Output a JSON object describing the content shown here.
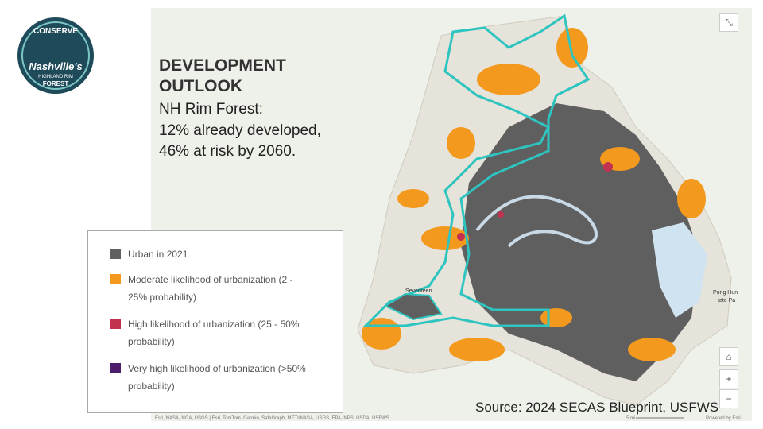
{
  "logo": {
    "top": "CONSERVE",
    "name": "Nashville's",
    "line2": "HIGHLAND RIM",
    "line3": "FOREST"
  },
  "header": {
    "title": "DEVELOPMENT OUTLOOK",
    "lines": [
      "NH Rim Forest:",
      "12% already developed,",
      "46% at risk by 2060."
    ]
  },
  "legend": {
    "items": [
      {
        "label": "Urban in 2021",
        "color": "#5f5f5f"
      },
      {
        "label": "Moderate likelihood of urbanization (2 - 25% probability)",
        "color": "#f39a1e"
      },
      {
        "label": "High likelihood of urbanization (25 - 50% probability)",
        "color": "#c2314f"
      },
      {
        "label": "Very high likelihood of urbanization (>50% probability)",
        "color": "#4b1d6b"
      }
    ]
  },
  "map": {
    "places": [
      "Seventeen",
      "Pong Hun",
      "tate Pa"
    ],
    "attribution": "Esri, NASA, NGA, USGS | Esri, TomTom, Garmin, SafeGraph, METI/NASA, USGS, EPA, NPS, USDA, USFWS",
    "scale": "5 mi",
    "powered": "Powered by Esri"
  },
  "source": "Source: 2024 SECAS Blueprint, USFWS"
}
